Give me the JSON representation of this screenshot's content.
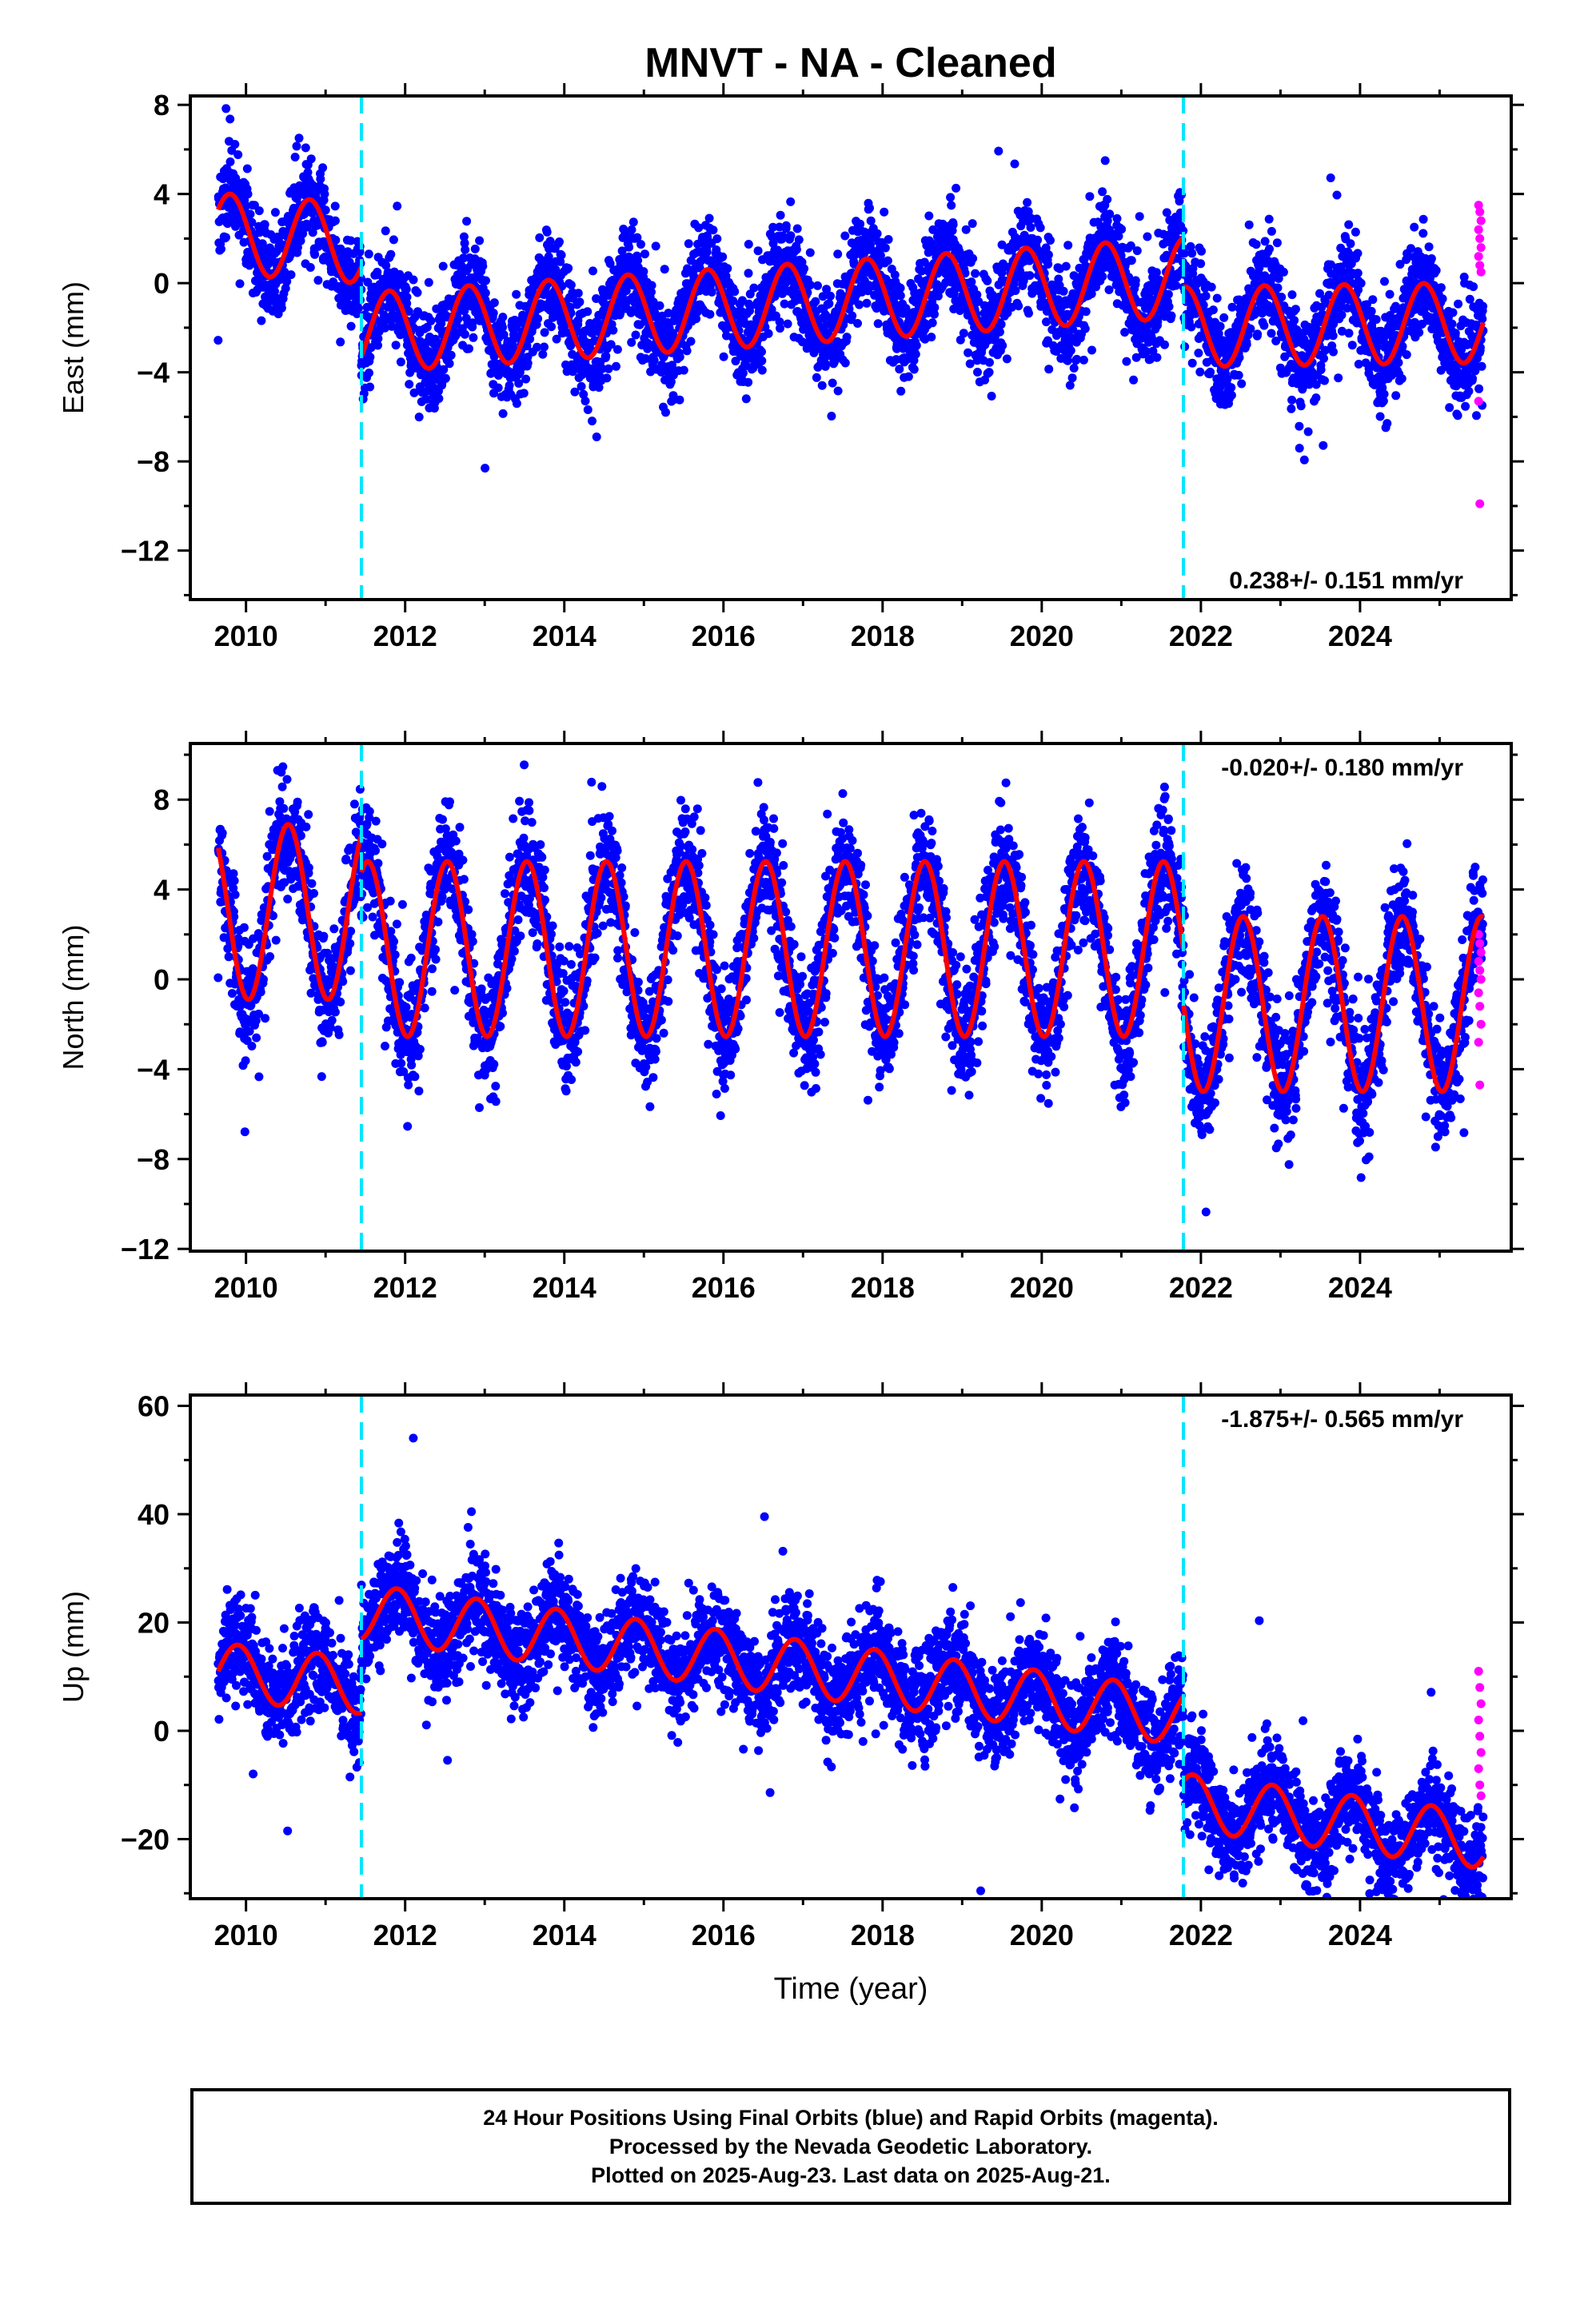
{
  "title": "MNVT  - NA - Cleaned",
  "xlabel": "Time (year)",
  "colors": {
    "final": "#0000ff",
    "rapid": "#ff00ff",
    "model": "#ff0000",
    "break": "#00e5ff"
  },
  "footer": {
    "line1": "24 Hour Positions Using Final Orbits (blue) and Rapid Orbits (magenta).",
    "line2": "Processed by the Nevada Geodetic Laboratory.",
    "line3": "Plotted on 2025-Aug-23. Last data on 2025-Aug-21."
  },
  "chart_data": [
    {
      "type": "scatter",
      "component": "East",
      "ylabel": "East (mm)",
      "xlim": [
        2009.3,
        2025.9
      ],
      "ylim": [
        -14.2,
        8.4
      ],
      "xticks": [
        2010,
        2012,
        2014,
        2016,
        2018,
        2020,
        2022,
        2024
      ],
      "yticks": [
        -12,
        -8,
        -4,
        0,
        4,
        8
      ],
      "xtick_labels": [
        "2010",
        "2012",
        "2014",
        "2016",
        "2018",
        "2020",
        "2022",
        "2024"
      ],
      "ytick_labels": [
        "−12",
        "−8",
        "−4",
        "0",
        "4",
        "8"
      ],
      "rate_label": "0.238+/- 0.151 mm/yr",
      "breaks": [
        2011.45,
        2021.78
      ],
      "data_range": [
        2009.65,
        2025.55
      ],
      "model": {
        "segments": [
          {
            "start": 2009.65,
            "end": 2011.45,
            "offset": 0.4,
            "slope": -0.25,
            "amp": 1.8,
            "phase": 0.55
          },
          {
            "start": 2011.45,
            "end": 2021.78,
            "offset": -0.9,
            "slope": 0.24,
            "amp": 1.8,
            "phase": 0.55
          },
          {
            "start": 2021.78,
            "end": 2025.55,
            "offset": -2.2,
            "slope": 0.05,
            "amp": 1.8,
            "phase": 0.55
          }
        ]
      },
      "scatter": {
        "noise": 1.1,
        "per_year": 300,
        "seed": 11
      },
      "rapid_points": [
        3.5,
        3.2,
        2.8,
        2.4,
        2.0,
        1.6,
        1.2,
        0.8,
        0.5,
        -5.3,
        -9.9
      ]
    },
    {
      "type": "scatter",
      "component": "North",
      "ylabel": "North (mm)",
      "xlim": [
        2009.3,
        2025.9
      ],
      "ylim": [
        -12.1,
        10.5
      ],
      "xticks": [
        2010,
        2012,
        2014,
        2016,
        2018,
        2020,
        2022,
        2024
      ],
      "yticks": [
        -12,
        -8,
        -4,
        0,
        4,
        8
      ],
      "xtick_labels": [
        "2010",
        "2012",
        "2014",
        "2016",
        "2018",
        "2020",
        "2022",
        "2024"
      ],
      "ytick_labels": [
        "−12",
        "−8",
        "−4",
        "0",
        "4",
        "8"
      ],
      "rate_label": "-0.020+/- 0.180 mm/yr",
      "breaks": [
        2011.45,
        2021.78
      ],
      "data_range": [
        2009.65,
        2025.55
      ],
      "model": {
        "segments": [
          {
            "start": 2009.65,
            "end": 2011.45,
            "offset": 3.0,
            "slope": 0.0,
            "amp": 3.9,
            "phase": 0.28
          },
          {
            "start": 2011.45,
            "end": 2021.78,
            "offset": 1.35,
            "slope": 0.0,
            "amp": 3.9,
            "phase": 0.28
          },
          {
            "start": 2021.78,
            "end": 2025.55,
            "offset": -1.1,
            "slope": 0.0,
            "amp": 3.9,
            "phase": 0.28
          }
        ]
      },
      "scatter": {
        "noise": 1.3,
        "per_year": 300,
        "seed": 23
      },
      "rapid_points": [
        2.0,
        1.6,
        1.2,
        0.8,
        0.4,
        0.0,
        -0.6,
        -1.2,
        -2.0,
        -2.8,
        -4.7
      ]
    },
    {
      "type": "scatter",
      "component": "Up",
      "ylabel": "Up (mm)",
      "xlim": [
        2009.3,
        2025.9
      ],
      "ylim": [
        -31,
        62
      ],
      "xticks": [
        2010,
        2012,
        2014,
        2016,
        2018,
        2020,
        2022,
        2024
      ],
      "yticks": [
        -20,
        0,
        20,
        40,
        60
      ],
      "xtick_labels": [
        "2010",
        "2012",
        "2014",
        "2016",
        "2018",
        "2020",
        "2022",
        "2024"
      ],
      "ytick_labels": [
        "−20",
        "0",
        "20",
        "40",
        "60"
      ],
      "rate_label": "-1.875+/- 0.565 mm/yr",
      "breaks": [
        2011.45,
        2021.78
      ],
      "data_range": [
        2009.65,
        2025.55
      ],
      "model": {
        "segments": [
          {
            "start": 2009.65,
            "end": 2011.45,
            "offset": 0.0,
            "slope": -1.5,
            "amp": 5.2,
            "phase": 0.65
          },
          {
            "start": 2011.45,
            "end": 2021.78,
            "offset": 11.5,
            "slope": -1.87,
            "amp": 5.2,
            "phase": 0.65
          },
          {
            "start": 2021.78,
            "end": 2025.55,
            "offset": -4.0,
            "slope": -1.9,
            "amp": 5.2,
            "phase": 0.65
          }
        ]
      },
      "scatter": {
        "noise": 4.5,
        "per_year": 300,
        "seed": 37
      },
      "rapid_points": [
        11.0,
        8.0,
        5.0,
        2.0,
        -1.0,
        -4.0,
        -7.0,
        -10.0,
        -12.0
      ]
    }
  ]
}
